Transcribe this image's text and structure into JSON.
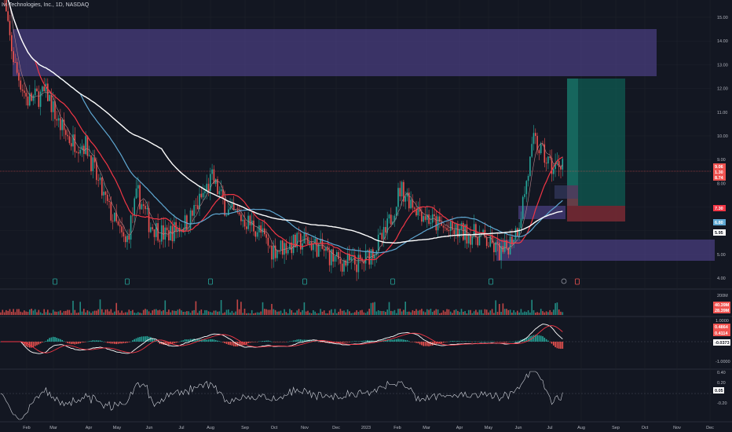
{
  "header": {
    "title": "Ivi Technologies, Inc., 1D, NASDAQ"
  },
  "colors": {
    "background": "#131722",
    "grid": "#1e222d",
    "up": "#26a69a",
    "down": "#ef5350",
    "ma_fast": "#f23645",
    "ma_mid": "#5fa8d3",
    "ma_slow": "#ffffff",
    "zone": "#5b4a9e",
    "target": "#0f5b52",
    "stop": "#7a2a34"
  },
  "price_axis": {
    "ticks": [
      "17.00",
      "16.00",
      "15.00",
      "14.00",
      "13.00",
      "12.00",
      "11.00",
      "10.00",
      "9.00",
      "8.00",
      "7.00",
      "6.00",
      "5.00",
      "4.00"
    ],
    "tags": [
      {
        "text": "9.06",
        "color": "#ef5350"
      },
      {
        "text": "1.30",
        "color": "#ef5350"
      },
      {
        "text": "8.74",
        "color": "#ef5350"
      },
      {
        "text": "7.30",
        "color": "#f23645"
      },
      {
        "text": "6.80",
        "color": "#5fa8d3"
      },
      {
        "text": "5.95",
        "color": "#ffffff"
      }
    ]
  },
  "volume_axis": {
    "ticks": [
      "200M"
    ],
    "tags": [
      {
        "text": "40.39M",
        "color": "#ef5350"
      },
      {
        "text": "28.39M",
        "color": "#ef5350"
      }
    ]
  },
  "macd_axis": {
    "ticks": [
      "1.0000",
      "-1.0000"
    ],
    "tags": [
      {
        "text": "0.4864",
        "color": "#ef5350"
      },
      {
        "text": "0.4114",
        "color": "#ef5350"
      },
      {
        "text": "-0.0373",
        "color": "#ffffff"
      }
    ]
  },
  "rsi_axis": {
    "ticks": [
      "0.40",
      "0.20",
      "-0.20"
    ],
    "tags": [
      {
        "text": "0.05",
        "color": "#ffffff"
      }
    ]
  },
  "time_axis": {
    "labels": [
      "Feb",
      "Mar",
      "Apr",
      "May",
      "Jun",
      "Jul",
      "Aug",
      "Sep",
      "Oct",
      "Nov",
      "Dec",
      "2023",
      "Feb",
      "Mar",
      "Apr",
      "May",
      "Jun",
      "Jul",
      "Aug",
      "Sep",
      "Oct",
      "Nov",
      "Dec"
    ]
  }
}
